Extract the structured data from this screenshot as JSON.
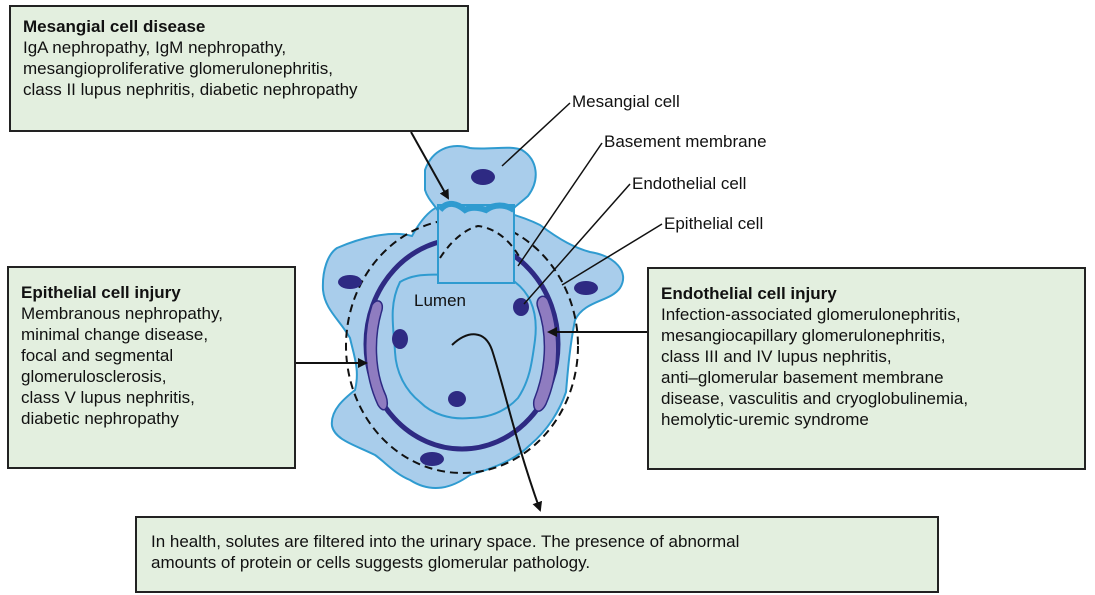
{
  "boxes": {
    "mesangial": {
      "title": "Mesangial cell disease",
      "body": "IgA nephropathy, IgM nephropathy,\nmesangioproliferative glomerulonephritis,\nclass II lupus nephritis, diabetic nephropathy"
    },
    "epithelial": {
      "title": "Epithelial cell injury",
      "body": "Membranous nephropathy,\nminimal change disease,\nfocal and segmental\nglomerulosclerosis,\nclass V lupus nephritis,\ndiabetic nephropathy"
    },
    "endothelial": {
      "title": "Endothelial cell injury",
      "body": "Infection-associated glomerulonephritis,\nmesangiocapillary glomerulonephritis,\nclass III and IV lupus nephritis,\nanti–glomerular basement membrane\ndisease, vasculitis and cryoglobulinemia,\nhemolytic-uremic syndrome"
    },
    "health": {
      "body": "In health, solutes are filtered into the urinary space. The presence of abnormal\namounts of protein or cells suggests glomerular pathology."
    }
  },
  "labels": {
    "mesangial_cell": "Mesangial cell",
    "basement_membrane": "Basement membrane",
    "endothelial_cell": "Endothelial cell",
    "epithelial_cell": "Epithelial cell",
    "lumen": "Lumen"
  },
  "colors": {
    "box_fill": "#e3efdf",
    "cell_fill": "#a9cdeb",
    "cell_outline": "#2f9bd0",
    "nucleus": "#2e2a83",
    "basement_membrane": "#2e2a83",
    "podocyte_band": "#8f7cc0"
  }
}
